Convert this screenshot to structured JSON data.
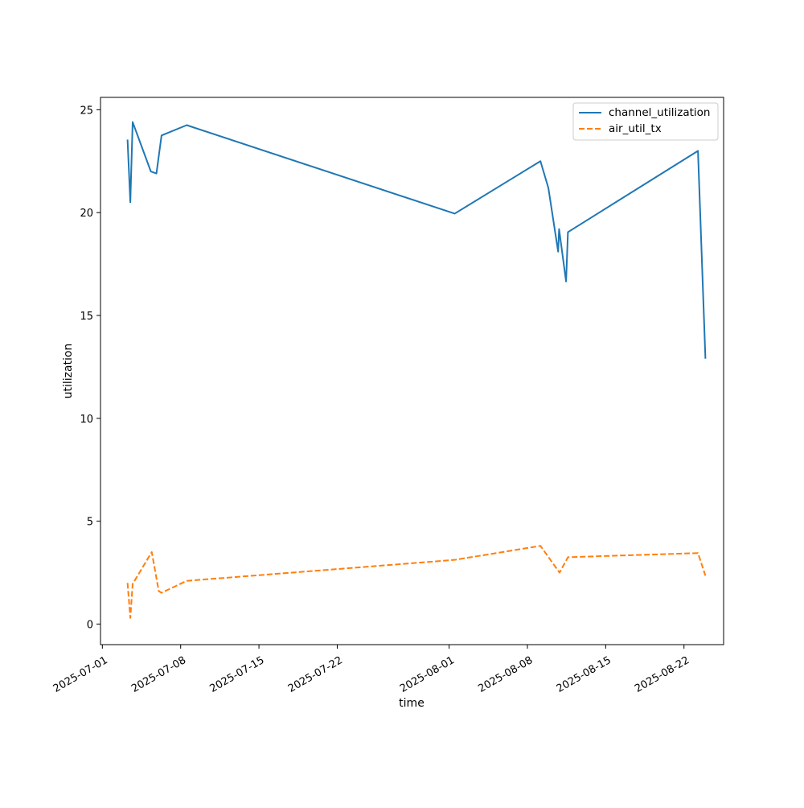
{
  "chart_data": {
    "type": "line",
    "xlabel": "time",
    "ylabel": "utilization",
    "x_axis_type": "date",
    "xlim": [
      "2025-06-30T20:00",
      "2025-08-25T13:00"
    ],
    "ylim": [
      -1,
      25.6
    ],
    "grid": false,
    "legend_position": "top-right",
    "x_ticks": [
      "2025-07-01",
      "2025-07-08",
      "2025-07-15",
      "2025-07-22",
      "2025-08-01",
      "2025-08-08",
      "2025-08-15",
      "2025-08-22"
    ],
    "y_ticks": [
      0,
      5,
      10,
      15,
      20,
      25
    ],
    "series": [
      {
        "name": "channel_utilization",
        "color": "#1f77b4",
        "dash": "solid",
        "points": [
          {
            "x": "2025-07-03T06:00",
            "y": 23.55
          },
          {
            "x": "2025-07-03T12:00",
            "y": 20.5
          },
          {
            "x": "2025-07-03T17:00",
            "y": 24.4
          },
          {
            "x": "2025-07-05T08:00",
            "y": 22.0
          },
          {
            "x": "2025-07-05T20:00",
            "y": 21.9
          },
          {
            "x": "2025-07-06T07:00",
            "y": 23.75
          },
          {
            "x": "2025-07-08T13:00",
            "y": 24.25
          },
          {
            "x": "2025-08-01T12:00",
            "y": 19.95
          },
          {
            "x": "2025-08-09T04:00",
            "y": 22.5
          },
          {
            "x": "2025-08-09T21:00",
            "y": 21.2
          },
          {
            "x": "2025-08-10T18:00",
            "y": 18.1
          },
          {
            "x": "2025-08-10T20:00",
            "y": 19.2
          },
          {
            "x": "2025-08-11T11:00",
            "y": 16.65
          },
          {
            "x": "2025-08-11T15:00",
            "y": 19.05
          },
          {
            "x": "2025-08-23T06:00",
            "y": 23.0
          },
          {
            "x": "2025-08-23T22:00",
            "y": 12.9
          }
        ]
      },
      {
        "name": "air_util_tx",
        "color": "#ff7f0e",
        "dash": "dashed",
        "points": [
          {
            "x": "2025-07-03T06:00",
            "y": 2.0
          },
          {
            "x": "2025-07-03T12:00",
            "y": 0.3
          },
          {
            "x": "2025-07-03T17:00",
            "y": 1.95
          },
          {
            "x": "2025-07-05T10:00",
            "y": 3.5
          },
          {
            "x": "2025-07-06T01:00",
            "y": 1.6
          },
          {
            "x": "2025-07-06T07:00",
            "y": 1.52
          },
          {
            "x": "2025-07-08T13:00",
            "y": 2.1
          },
          {
            "x": "2025-08-01T12:00",
            "y": 3.12
          },
          {
            "x": "2025-08-09T04:00",
            "y": 3.8
          },
          {
            "x": "2025-08-10T21:00",
            "y": 2.5
          },
          {
            "x": "2025-08-11T15:00",
            "y": 3.25
          },
          {
            "x": "2025-08-23T06:00",
            "y": 3.45
          },
          {
            "x": "2025-08-23T22:00",
            "y": 2.35
          }
        ]
      }
    ]
  }
}
